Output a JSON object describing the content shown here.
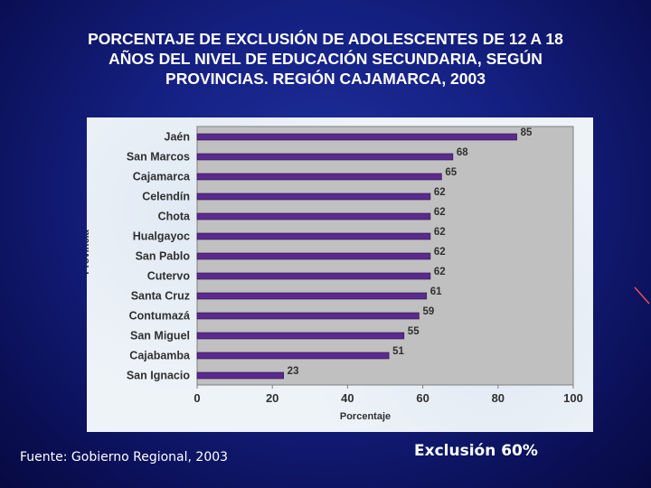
{
  "title_lines": [
    "PORCENTAJE DE EXCLUSIÓN DE ADOLESCENTES DE 12 A 18",
    "AÑOS DEL NIVEL DE EDUCACIÓN SECUNDARIA, SEGÚN",
    "PROVINCIAS. REGIÓN CAJAMARCA, 2003"
  ],
  "source": "Fuente: Gobierno Regional, 2003",
  "summary": "Exclusión 60%",
  "colors": {
    "bar": "#5a2a8c",
    "plot_background": "#c0c0c0",
    "panel_background": "#eef3f8"
  },
  "chart_data": {
    "type": "bar",
    "orientation": "horizontal",
    "categories": [
      "Jaén",
      "San Marcos",
      "Cajamarca",
      "Celendín",
      "Chota",
      "Hualgayoc",
      "San Pablo",
      "Cutervo",
      "Santa Cruz",
      "Contumazá",
      "San Miguel",
      "Cajabamba",
      "San Ignacio"
    ],
    "values": [
      85,
      68,
      65,
      62,
      62,
      62,
      62,
      62,
      61,
      59,
      55,
      51,
      23
    ],
    "title": "PORCENTAJE DE EXCLUSIÓN DE ADOLESCENTES DE 12 A 18 AÑOS DEL NIVEL DE EDUCACIÓN SECUNDARIA, SEGÚN PROVINCIAS. REGIÓN CAJAMARCA, 2003",
    "xlabel": "Porcentaje",
    "ylabel": "Provincia",
    "xlim": [
      0,
      100
    ],
    "xticks": [
      0,
      20,
      40,
      60,
      80,
      100
    ],
    "grid": false,
    "data_labels": true
  }
}
